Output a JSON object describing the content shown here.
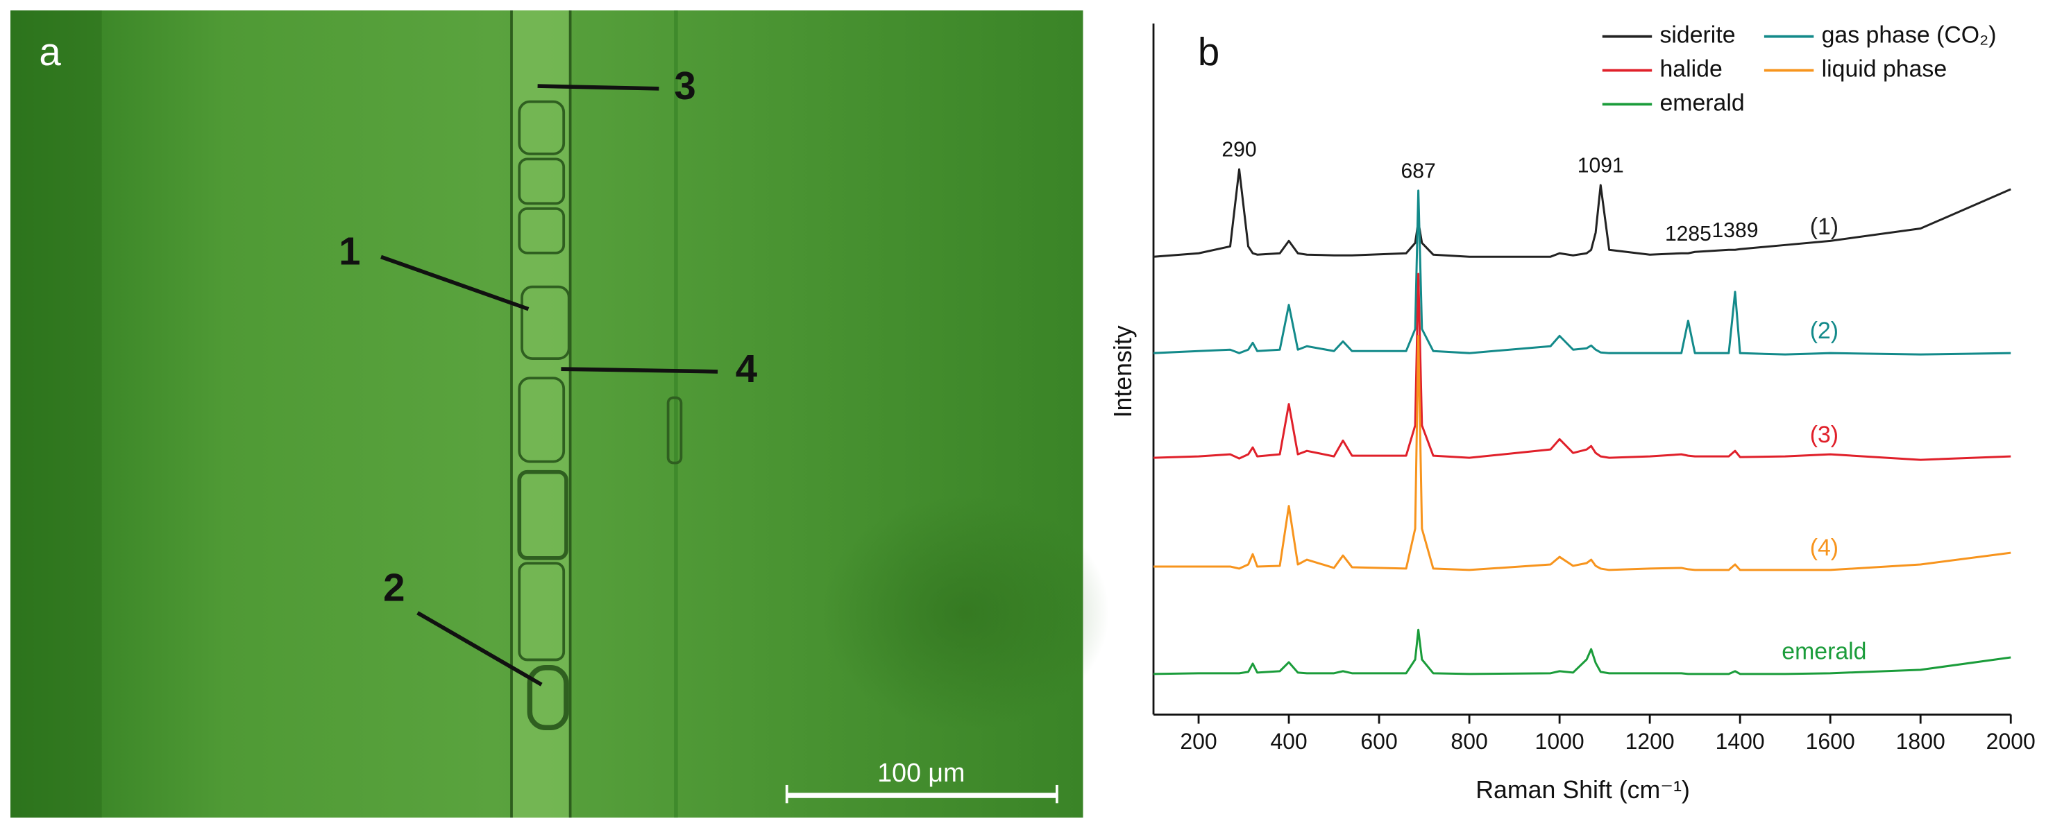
{
  "micrograph": {
    "panel_label": "a",
    "labels": [
      "1",
      "2",
      "3",
      "4"
    ],
    "scale_bar": "100 μm"
  },
  "chart_data": {
    "type": "line",
    "panel_label": "b",
    "x_label": "Raman Shift (cm⁻¹)",
    "y_label": "Intensity",
    "x": [
      100,
      200,
      270,
      290,
      310,
      320,
      330,
      380,
      400,
      420,
      440,
      500,
      520,
      540,
      660,
      680,
      687,
      695,
      720,
      800,
      980,
      1000,
      1030,
      1060,
      1070,
      1080,
      1091,
      1110,
      1200,
      1270,
      1285,
      1300,
      1375,
      1389,
      1400,
      1500,
      1600,
      1800,
      2000
    ],
    "xlim": [
      100,
      2000
    ],
    "xticks": [
      200,
      400,
      600,
      800,
      1000,
      1200,
      1400,
      1600,
      1800,
      2000
    ],
    "ylim": [
      0,
      100
    ],
    "peak_labels": [
      290,
      687,
      1091,
      1285,
      1389
    ],
    "series": [
      {
        "name": "siderite",
        "label": "(1)",
        "color": "#222222",
        "values": [
          66.5,
          67,
          68,
          79.2,
          68,
          67,
          66.8,
          67,
          68.8,
          67,
          66.8,
          66.7,
          66.7,
          66.7,
          67,
          68.5,
          71.6,
          68.5,
          66.8,
          66.5,
          66.5,
          67,
          66.7,
          67,
          67.5,
          70,
          76.9,
          67.5,
          66.8,
          67,
          67,
          67.2,
          67.5,
          67.5,
          67.6,
          68.2,
          68.8,
          70.6,
          76.3
        ]
      },
      {
        "name": "gas phase (CO₂)",
        "label": "(2)",
        "color": "#138a8a",
        "values": [
          52.5,
          52.8,
          53,
          52.5,
          53,
          54,
          52.8,
          53,
          59.5,
          53,
          53.5,
          52.8,
          54.2,
          52.8,
          52.8,
          56,
          76.1,
          56,
          52.8,
          52.5,
          53.5,
          55,
          53,
          53.2,
          53.6,
          53,
          52.6,
          52.5,
          52.5,
          52.5,
          57.2,
          52.5,
          52.5,
          61.4,
          52.5,
          52.3,
          52.5,
          52.3,
          52.5
        ]
      },
      {
        "name": "halide",
        "label": "(3)",
        "color": "#e0202a",
        "values": [
          37.3,
          37.5,
          37.8,
          37.2,
          37.8,
          38.8,
          37.5,
          37.8,
          45.1,
          37.8,
          38.3,
          37.5,
          39.8,
          37.6,
          37.6,
          42,
          64,
          42,
          37.6,
          37.3,
          38.5,
          40,
          38,
          38.5,
          39,
          38,
          37.5,
          37.3,
          37.5,
          37.8,
          37.6,
          37.5,
          37.5,
          38.3,
          37.4,
          37.5,
          37.8,
          37,
          37.5
        ]
      },
      {
        "name": "liquid phase",
        "label": "(4)",
        "color": "#f7941d",
        "values": [
          21.5,
          21.5,
          21.5,
          21.2,
          21.8,
          23.3,
          21.5,
          21.6,
          30.3,
          21.8,
          22.5,
          21.3,
          23.1,
          21.4,
          21.2,
          27,
          55,
          27,
          21.2,
          21,
          21.8,
          22.9,
          21.6,
          22,
          22.5,
          21.6,
          21.2,
          21,
          21.2,
          21.3,
          21.1,
          21,
          21,
          21.8,
          21,
          21,
          21,
          21.8,
          23.5
        ]
      },
      {
        "name": "emerald",
        "label": "emerald",
        "color": "#1a9c3a",
        "values": [
          5.9,
          6,
          6,
          6,
          6.2,
          7.4,
          6.1,
          6.3,
          7.6,
          6.1,
          6,
          6,
          6.3,
          6,
          6,
          8,
          12.3,
          8,
          6,
          5.9,
          6,
          6.3,
          6.1,
          8,
          9.5,
          7.5,
          6.2,
          6,
          6,
          6,
          5.9,
          5.9,
          5.9,
          6.3,
          5.9,
          5.9,
          6,
          6.5,
          8.3
        ]
      }
    ]
  }
}
